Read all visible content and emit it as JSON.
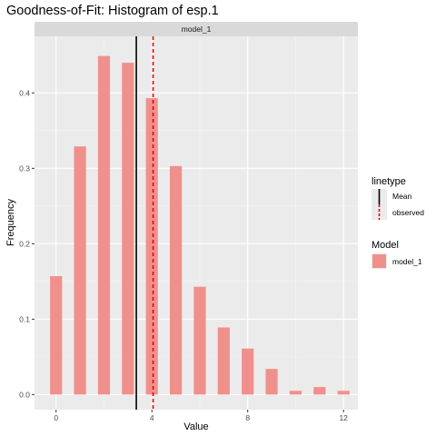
{
  "chart_data": {
    "type": "bar",
    "title": "Goodness-of-Fit: Histogram of esp.1",
    "facet_label": "model_1",
    "xlabel": "Value",
    "ylabel": "Frequency",
    "xlim": [
      -0.9,
      12.6
    ],
    "ylim": [
      -0.02,
      0.475
    ],
    "x_ticks": [
      0,
      4,
      8,
      12
    ],
    "x_tick_labels": [
      "0",
      "4",
      "8",
      "12"
    ],
    "y_ticks": [
      0.0,
      0.1,
      0.2,
      0.3,
      0.4
    ],
    "y_tick_labels": [
      "0.0",
      "0.1",
      "0.2",
      "0.3",
      "0.4"
    ],
    "bar_width": 0.5,
    "x": [
      0,
      1,
      2,
      3,
      4,
      5,
      6,
      7,
      8,
      9,
      10,
      11,
      12
    ],
    "series": [
      {
        "name": "model_1",
        "color": "#f0908c",
        "values": [
          0.157,
          0.329,
          0.449,
          0.44,
          0.393,
          0.303,
          0.143,
          0.089,
          0.061,
          0.034,
          0.005,
          0.01,
          0.005
        ]
      }
    ],
    "vlines": [
      {
        "name": "Mean",
        "x": 3.35,
        "color": "#000000",
        "style": "solid"
      },
      {
        "name": "observed",
        "x": 4.05,
        "color": "#e8000b",
        "style": "dashed"
      }
    ],
    "legends": [
      {
        "title": "linetype",
        "entries": [
          "Mean",
          "observed"
        ]
      },
      {
        "title": "Model",
        "entries": [
          "model_1"
        ]
      }
    ],
    "grid": true,
    "legend_position": "right",
    "panel_background": "#ebebeb",
    "strip_background": "#d9d9d9"
  }
}
